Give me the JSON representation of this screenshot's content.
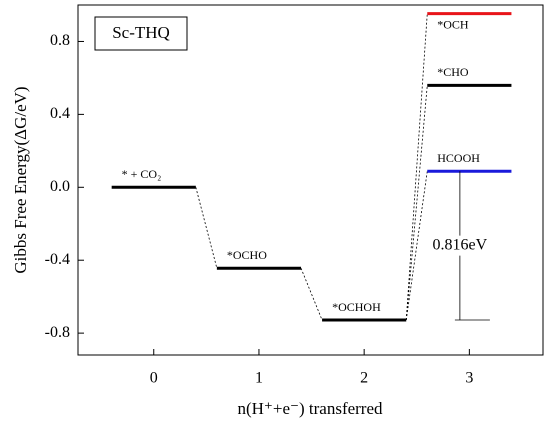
{
  "chart_data": {
    "type": "energy-diagram",
    "title": "Sc-THQ",
    "xlabel": "n(H⁺+e⁻) transferred",
    "ylabel": "Gibbs Free Energy(ΔG/eV)",
    "xlim": [
      -0.72,
      3.7
    ],
    "xticks": [
      0,
      1,
      2,
      3
    ],
    "ylim": [
      -0.92,
      1.0
    ],
    "yticks": [
      0.8,
      0.4,
      {
        "value": 0,
        "label": "0.0"
      },
      -0.4,
      -0.8
    ],
    "x": [
      0,
      1,
      2,
      3,
      3,
      3
    ],
    "values": [
      0,
      -0.444,
      -0.728,
      0.088,
      0.559,
      0.953
    ],
    "labels": [
      "* + CO₂",
      "*OCHO",
      "*OCHOH",
      "HCOOH",
      "*CHO",
      "*OCH"
    ],
    "colors": [
      "#000000",
      "#000000",
      "#000000",
      "#1a1adb",
      "#000000",
      "#e8141a"
    ],
    "annotation": "0.816eV"
  }
}
